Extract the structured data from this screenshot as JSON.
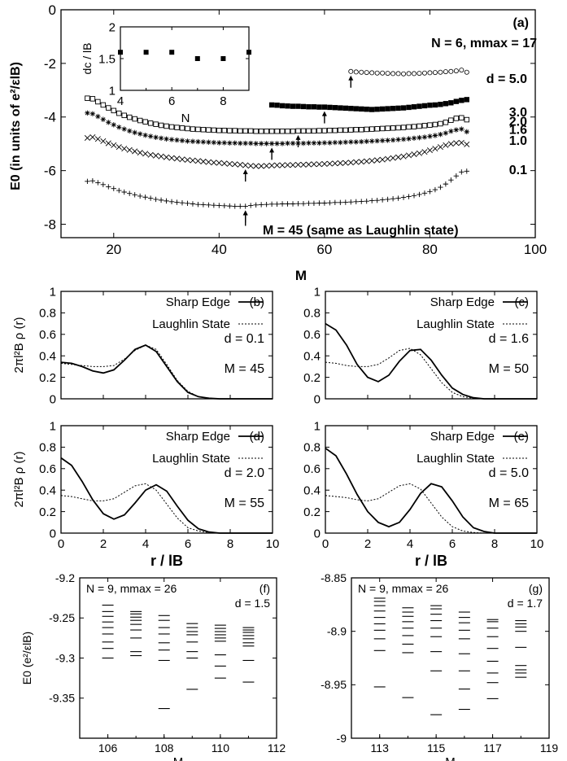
{
  "chart_data": [
    {
      "panel": "(a)",
      "type": "scatter",
      "xlabel": "M",
      "ylabel": "E0 (in units of e²/εlB)",
      "xlim": [
        10,
        100
      ],
      "ylim": [
        -8.5,
        0
      ],
      "xticks": [
        "20",
        "40",
        "60",
        "80",
        "100"
      ],
      "yticks": [
        "0",
        "-2",
        "-4",
        "-6",
        "-8"
      ],
      "annotations": [
        "N = 6, mmax = 17",
        "M = 45 (same as Laughlin state)"
      ],
      "series": [
        {
          "name": "d = 5.0",
          "marker": "circle",
          "x_range": [
            65,
            87
          ],
          "y": [
            -2.3,
            -2.32,
            -2.33,
            -2.34,
            -2.35,
            -2.36,
            -2.36,
            -2.37,
            -2.38,
            -2.38,
            -2.39,
            -2.38,
            -2.38,
            -2.37,
            -2.36,
            -2.35,
            -2.34,
            -2.33,
            -2.31,
            -2.3,
            -2.28,
            -2.25,
            -2.33
          ],
          "minimum_arrow_at": 65
        },
        {
          "name": "3.0",
          "marker": "filled-square",
          "x_range": [
            50,
            87
          ],
          "y": [
            -3.55,
            -3.56,
            -3.58,
            -3.59,
            -3.6,
            -3.6,
            -3.61,
            -3.62,
            -3.62,
            -3.63,
            -3.63,
            -3.64,
            -3.65,
            -3.66,
            -3.67,
            -3.68,
            -3.69,
            -3.7,
            -3.71,
            -3.72,
            -3.71,
            -3.7,
            -3.69,
            -3.68,
            -3.67,
            -3.66,
            -3.64,
            -3.62,
            -3.6,
            -3.58,
            -3.56,
            -3.55,
            -3.53,
            -3.5,
            -3.47,
            -3.42,
            -3.38,
            -3.35
          ],
          "minimum_arrow_at": 60
        },
        {
          "name": "2.0",
          "marker": "open-square",
          "x_range": [
            15,
            87
          ],
          "y": [
            -3.3,
            -3.32,
            -3.43,
            -3.55,
            -3.66,
            -3.76,
            -3.86,
            -3.94,
            -4.01,
            -4.07,
            -4.13,
            -4.18,
            -4.23,
            -4.27,
            -4.31,
            -4.34,
            -4.37,
            -4.39,
            -4.41,
            -4.43,
            -4.45,
            -4.46,
            -4.47,
            -4.48,
            -4.49,
            -4.5,
            -4.5,
            -4.51,
            -4.51,
            -4.52,
            -4.52,
            -4.52,
            -4.53,
            -4.53,
            -4.53,
            -4.53,
            -4.53,
            -4.53,
            -4.53,
            -4.53,
            -4.52,
            -4.52,
            -4.52,
            -4.52,
            -4.51,
            -4.51,
            -4.5,
            -4.5,
            -4.49,
            -4.49,
            -4.48,
            -4.47,
            -4.47,
            -4.46,
            -4.45,
            -4.44,
            -4.43,
            -4.42,
            -4.41,
            -4.4,
            -4.39,
            -4.37,
            -4.36,
            -4.34,
            -4.32,
            -4.3,
            -4.28,
            -4.25,
            -4.2,
            -4.12,
            -4.05,
            -4.03,
            -4.1
          ],
          "minimum_arrow_at": 55
        },
        {
          "name": "1.6",
          "marker": "asterisk",
          "x_range": [
            15,
            87
          ],
          "y": [
            -3.85,
            -3.88,
            -3.98,
            -4.09,
            -4.2,
            -4.29,
            -4.38,
            -4.45,
            -4.52,
            -4.58,
            -4.63,
            -4.68,
            -4.72,
            -4.76,
            -4.79,
            -4.82,
            -4.84,
            -4.86,
            -4.88,
            -4.9,
            -4.91,
            -4.92,
            -4.93,
            -4.94,
            -4.95,
            -4.96,
            -4.96,
            -4.97,
            -4.97,
            -4.98,
            -4.98,
            -4.98,
            -4.99,
            -4.99,
            -4.99,
            -4.99,
            -4.99,
            -4.99,
            -4.98,
            -4.98,
            -4.98,
            -4.98,
            -4.97,
            -4.97,
            -4.97,
            -4.96,
            -4.96,
            -4.95,
            -4.95,
            -4.94,
            -4.93,
            -4.93,
            -4.92,
            -4.91,
            -4.9,
            -4.89,
            -4.88,
            -4.87,
            -4.86,
            -4.84,
            -4.83,
            -4.81,
            -4.79,
            -4.77,
            -4.75,
            -4.72,
            -4.69,
            -4.65,
            -4.6,
            -4.53,
            -4.48,
            -4.45,
            -4.55
          ],
          "minimum_arrow_at": 50
        },
        {
          "name": "1.0",
          "marker": "cross",
          "x_range": [
            15,
            87
          ],
          "y": [
            -4.78,
            -4.75,
            -4.82,
            -4.9,
            -4.98,
            -5.05,
            -5.12,
            -5.18,
            -5.23,
            -5.28,
            -5.33,
            -5.37,
            -5.41,
            -5.44,
            -5.47,
            -5.5,
            -5.53,
            -5.55,
            -5.58,
            -5.6,
            -5.62,
            -5.64,
            -5.66,
            -5.68,
            -5.7,
            -5.71,
            -5.73,
            -5.75,
            -5.76,
            -5.78,
            -5.8,
            -5.82,
            -5.83,
            -5.83,
            -5.82,
            -5.81,
            -5.8,
            -5.8,
            -5.79,
            -5.79,
            -5.78,
            -5.78,
            -5.77,
            -5.76,
            -5.76,
            -5.75,
            -5.74,
            -5.73,
            -5.72,
            -5.71,
            -5.7,
            -5.68,
            -5.67,
            -5.65,
            -5.63,
            -5.61,
            -5.59,
            -5.56,
            -5.53,
            -5.5,
            -5.47,
            -5.43,
            -5.39,
            -5.35,
            -5.3,
            -5.24,
            -5.18,
            -5.12,
            -5.05,
            -5.0,
            -4.97,
            -4.96,
            -5.02
          ],
          "minimum_arrow_at": 45
        },
        {
          "name": "0.1",
          "marker": "plus",
          "x_range": [
            15,
            87
          ],
          "y": [
            -6.4,
            -6.38,
            -6.45,
            -6.52,
            -6.6,
            -6.67,
            -6.74,
            -6.8,
            -6.85,
            -6.9,
            -6.95,
            -6.99,
            -7.03,
            -7.07,
            -7.1,
            -7.13,
            -7.16,
            -7.18,
            -7.2,
            -7.22,
            -7.24,
            -7.26,
            -7.27,
            -7.28,
            -7.29,
            -7.3,
            -7.31,
            -7.32,
            -7.33,
            -7.33,
            -7.33,
            -7.3,
            -7.28,
            -7.27,
            -7.26,
            -7.25,
            -7.25,
            -7.24,
            -7.24,
            -7.24,
            -7.23,
            -7.23,
            -7.22,
            -7.22,
            -7.21,
            -7.21,
            -7.2,
            -7.19,
            -7.19,
            -7.18,
            -7.17,
            -7.16,
            -7.15,
            -7.14,
            -7.12,
            -7.11,
            -7.09,
            -7.07,
            -7.05,
            -7.03,
            -7.0,
            -6.97,
            -6.93,
            -6.89,
            -6.84,
            -6.78,
            -6.71,
            -6.62,
            -6.5,
            -6.35,
            -6.2,
            -6.05,
            -6.02
          ],
          "minimum_arrow_at": 45
        }
      ],
      "series_labels": [
        "d = 5.0",
        "3.0",
        "2.0",
        "1.6",
        "1.0",
        "0.1"
      ],
      "inset": {
        "type": "scatter",
        "xlabel": "N",
        "ylabel": "dc / lB",
        "xlim": [
          4,
          9
        ],
        "ylim": [
          1,
          2
        ],
        "xticks": [
          "4",
          "6",
          "8"
        ],
        "yticks": [
          "1",
          "1.5",
          "2"
        ],
        "x": [
          4,
          5,
          6,
          7,
          8,
          9
        ],
        "y": [
          1.6,
          1.6,
          1.6,
          1.5,
          1.5,
          1.6
        ]
      }
    },
    {
      "panel": "(b)",
      "type": "line",
      "xlim": [
        0,
        10
      ],
      "ylim": [
        0,
        1
      ],
      "ylabel": "2πl²B ρ (r)",
      "legend": [
        "Sharp Edge",
        "Laughlin State"
      ],
      "d_label": "d = 0.1",
      "m_label": "M = 45",
      "x": [
        0,
        0.5,
        1,
        1.5,
        2,
        2.5,
        3,
        3.5,
        4,
        4.5,
        5,
        5.5,
        6,
        6.5,
        7,
        7.5,
        8,
        9,
        10
      ],
      "series": [
        {
          "name": "Sharp Edge",
          "values": [
            0.34,
            0.33,
            0.3,
            0.26,
            0.24,
            0.27,
            0.36,
            0.46,
            0.5,
            0.44,
            0.3,
            0.16,
            0.06,
            0.02,
            0.005,
            0,
            0,
            0,
            0
          ]
        },
        {
          "name": "Laughlin State",
          "values": [
            0.33,
            0.32,
            0.31,
            0.3,
            0.3,
            0.31,
            0.37,
            0.45,
            0.5,
            0.46,
            0.32,
            0.17,
            0.07,
            0.02,
            0.005,
            0,
            0,
            0,
            0
          ]
        }
      ]
    },
    {
      "panel": "(c)",
      "type": "line",
      "xlim": [
        0,
        10
      ],
      "ylim": [
        0,
        1
      ],
      "legend": [
        "Sharp Edge",
        "Laughlin State"
      ],
      "d_label": "d = 1.6",
      "m_label": "M = 50",
      "x": [
        0,
        0.5,
        1,
        1.5,
        2,
        2.5,
        3,
        3.5,
        4,
        4.5,
        5,
        5.5,
        6,
        6.5,
        7,
        7.5,
        8,
        9,
        10
      ],
      "series": [
        {
          "name": "Sharp Edge",
          "values": [
            0.7,
            0.64,
            0.5,
            0.32,
            0.2,
            0.16,
            0.22,
            0.35,
            0.45,
            0.46,
            0.36,
            0.22,
            0.1,
            0.04,
            0.01,
            0,
            0,
            0,
            0
          ]
        },
        {
          "name": "Laughlin State",
          "values": [
            0.34,
            0.33,
            0.31,
            0.3,
            0.3,
            0.32,
            0.38,
            0.45,
            0.47,
            0.41,
            0.28,
            0.15,
            0.06,
            0.02,
            0.005,
            0,
            0,
            0,
            0
          ]
        }
      ]
    },
    {
      "panel": "(d)",
      "type": "line",
      "xlim": [
        0,
        10
      ],
      "ylim": [
        0,
        1
      ],
      "xlabel": "r / lB",
      "ylabel": "2πl²B ρ (r)",
      "legend": [
        "Sharp Edge",
        "Laughlin State"
      ],
      "d_label": "d = 2.0",
      "m_label": "M = 55",
      "x": [
        0,
        0.5,
        1,
        1.5,
        2,
        2.5,
        3,
        3.5,
        4,
        4.5,
        5,
        5.5,
        6,
        6.5,
        7,
        7.5,
        8,
        9,
        10
      ],
      "series": [
        {
          "name": "Sharp Edge",
          "values": [
            0.7,
            0.63,
            0.48,
            0.31,
            0.18,
            0.13,
            0.17,
            0.28,
            0.4,
            0.45,
            0.39,
            0.25,
            0.12,
            0.04,
            0.01,
            0,
            0,
            0,
            0
          ]
        },
        {
          "name": "Laughlin State",
          "values": [
            0.35,
            0.34,
            0.32,
            0.3,
            0.3,
            0.32,
            0.38,
            0.44,
            0.46,
            0.4,
            0.27,
            0.14,
            0.05,
            0.02,
            0.005,
            0,
            0,
            0,
            0
          ]
        }
      ]
    },
    {
      "panel": "(e)",
      "type": "line",
      "xlim": [
        0,
        10
      ],
      "ylim": [
        0,
        1
      ],
      "xlabel": "r / lB",
      "legend": [
        "Sharp Edge",
        "Laughlin State"
      ],
      "d_label": "d = 5.0",
      "m_label": "M = 65",
      "x": [
        0,
        0.5,
        1,
        1.5,
        2,
        2.5,
        3,
        3.5,
        4,
        4.5,
        5,
        5.5,
        6,
        6.5,
        7,
        7.5,
        8,
        9,
        10
      ],
      "series": [
        {
          "name": "Sharp Edge",
          "values": [
            0.79,
            0.72,
            0.55,
            0.36,
            0.2,
            0.1,
            0.06,
            0.1,
            0.22,
            0.37,
            0.46,
            0.43,
            0.3,
            0.15,
            0.05,
            0.015,
            0,
            0,
            0
          ]
        },
        {
          "name": "Laughlin State",
          "values": [
            0.35,
            0.34,
            0.33,
            0.31,
            0.3,
            0.32,
            0.38,
            0.44,
            0.46,
            0.41,
            0.28,
            0.15,
            0.06,
            0.02,
            0.005,
            0,
            0,
            0,
            0
          ]
        }
      ]
    },
    {
      "panel": "(f)",
      "type": "scatter",
      "xlabel": "M",
      "ylabel": "E0 (e²/εlB)",
      "xlim": [
        105,
        112
      ],
      "ylim": [
        -9.4,
        -9.2
      ],
      "xticks": [
        "106",
        "108",
        "110",
        "112"
      ],
      "yticks": [
        "-9.2",
        "-9.25",
        "-9.3",
        "-9.35"
      ],
      "annotation": "N = 9, mmax = 26",
      "d_label": "d = 1.5",
      "levels": [
        {
          "x": 106,
          "energies": [
            -9.234,
            -9.242,
            -9.248,
            -9.255,
            -9.262,
            -9.27,
            -9.28,
            -9.288,
            -9.3
          ]
        },
        {
          "x": 107,
          "energies": [
            -9.242,
            -9.245,
            -9.249,
            -9.253,
            -9.258,
            -9.265,
            -9.275,
            -9.292,
            -9.297
          ]
        },
        {
          "x": 108,
          "energies": [
            -9.247,
            -9.253,
            -9.262,
            -9.27,
            -9.281,
            -9.29,
            -9.303,
            -9.363
          ]
        },
        {
          "x": 109,
          "energies": [
            -9.257,
            -9.262,
            -9.267,
            -9.271,
            -9.28,
            -9.292,
            -9.3,
            -9.339
          ]
        },
        {
          "x": 110,
          "energies": [
            -9.259,
            -9.263,
            -9.267,
            -9.271,
            -9.275,
            -9.279,
            -9.296,
            -9.31,
            -9.325
          ]
        },
        {
          "x": 111,
          "energies": [
            -9.262,
            -9.265,
            -9.268,
            -9.272,
            -9.276,
            -9.281,
            -9.285,
            -9.303,
            -9.33
          ]
        }
      ]
    },
    {
      "panel": "(g)",
      "type": "scatter",
      "xlabel": "M",
      "xlim": [
        112,
        119
      ],
      "ylim": [
        -9,
        -8.85
      ],
      "xticks": [
        "113",
        "115",
        "117",
        "119"
      ],
      "yticks": [
        "-8.85",
        "-8.9",
        "-8.95",
        "-9"
      ],
      "annotation": "N = 9, mmax = 26",
      "d_label": "d = 1.7",
      "levels": [
        {
          "x": 113,
          "energies": [
            -8.869,
            -8.872,
            -8.876,
            -8.881,
            -8.887,
            -8.893,
            -8.899,
            -8.907,
            -8.918,
            -8.952
          ]
        },
        {
          "x": 114,
          "energies": [
            -8.878,
            -8.882,
            -8.886,
            -8.891,
            -8.897,
            -8.904,
            -8.912,
            -8.92,
            -8.962
          ]
        },
        {
          "x": 115,
          "energies": [
            -8.876,
            -8.879,
            -8.884,
            -8.89,
            -8.897,
            -8.905,
            -8.919,
            -8.937,
            -8.978
          ]
        },
        {
          "x": 116,
          "energies": [
            -8.882,
            -8.887,
            -8.892,
            -8.899,
            -8.907,
            -8.921,
            -8.937,
            -8.954,
            -8.973
          ]
        },
        {
          "x": 117,
          "energies": [
            -8.889,
            -8.891,
            -8.897,
            -8.905,
            -8.916,
            -8.928,
            -8.939,
            -8.948,
            -8.963
          ]
        },
        {
          "x": 118,
          "energies": [
            -8.89,
            -8.893,
            -8.896,
            -8.9,
            -8.915,
            -8.932,
            -8.936,
            -8.939,
            -8.943
          ]
        }
      ]
    }
  ]
}
